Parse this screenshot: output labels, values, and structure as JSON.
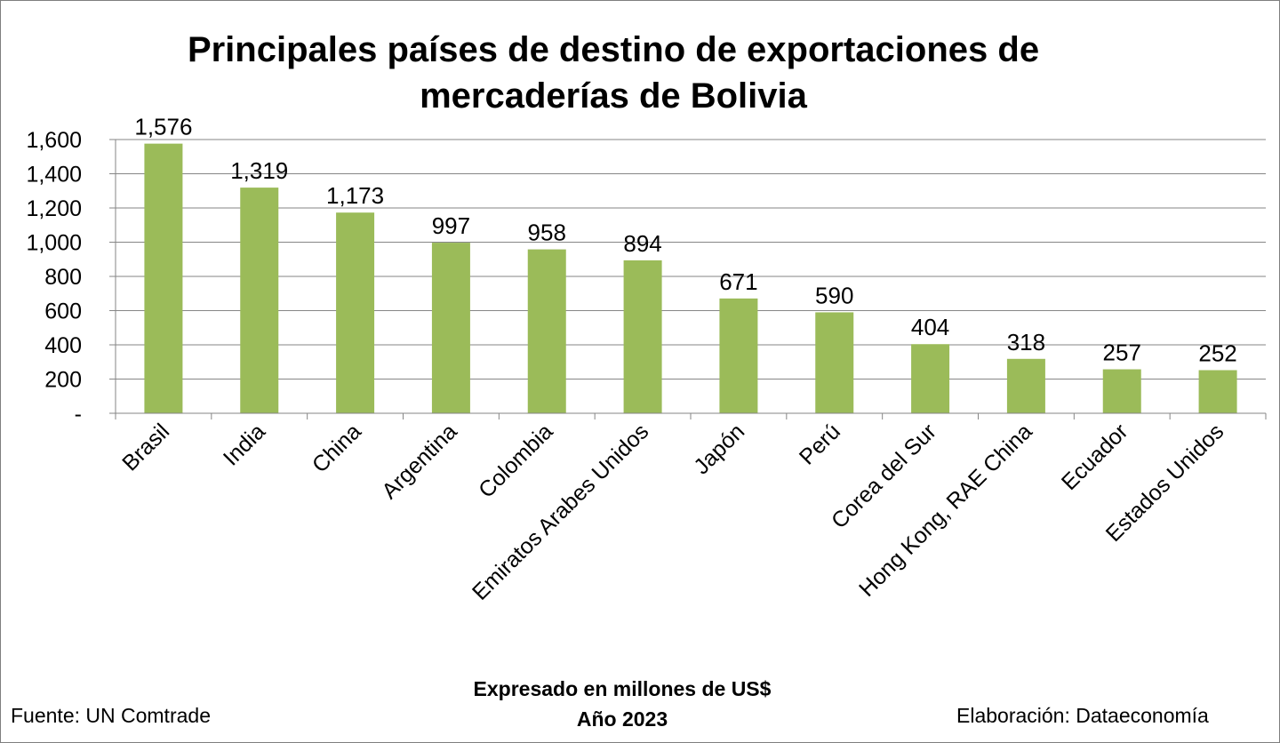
{
  "chart_data": {
    "type": "bar",
    "title": "Principales países de destino de exportaciones de mercaderías de Bolivia",
    "categories": [
      "Brasil",
      "India",
      "China",
      "Argentina",
      "Colombia",
      "Emiratos Arabes Unidos",
      "Japón",
      "Perú",
      "Corea del Sur",
      "Hong Kong, RAE China",
      "Ecuador",
      "Estados Unidos"
    ],
    "values": [
      1576,
      1319,
      1173,
      997,
      958,
      894,
      671,
      590,
      404,
      318,
      257,
      252
    ],
    "value_labels": [
      "1,576",
      "1,319",
      "1,173",
      "997",
      "958",
      "894",
      "671",
      "590",
      "404",
      "318",
      "257",
      "252"
    ],
    "ylim": [
      0,
      1600
    ],
    "yticks": [
      0,
      200,
      400,
      600,
      800,
      1000,
      1200,
      1400,
      1600
    ],
    "ytick_labels": [
      "-",
      "200",
      "400",
      "600",
      "800",
      "1,000",
      "1,200",
      "1,400",
      "1,600"
    ],
    "grid": true,
    "bar_color": "#9BBB59",
    "legend": "none"
  },
  "notes": {
    "unit_line": "Expresado en millones de US$",
    "year_line": "Año 2023",
    "source": "Fuente: UN Comtrade",
    "credit": "Elaboración: Dataeconomía"
  }
}
